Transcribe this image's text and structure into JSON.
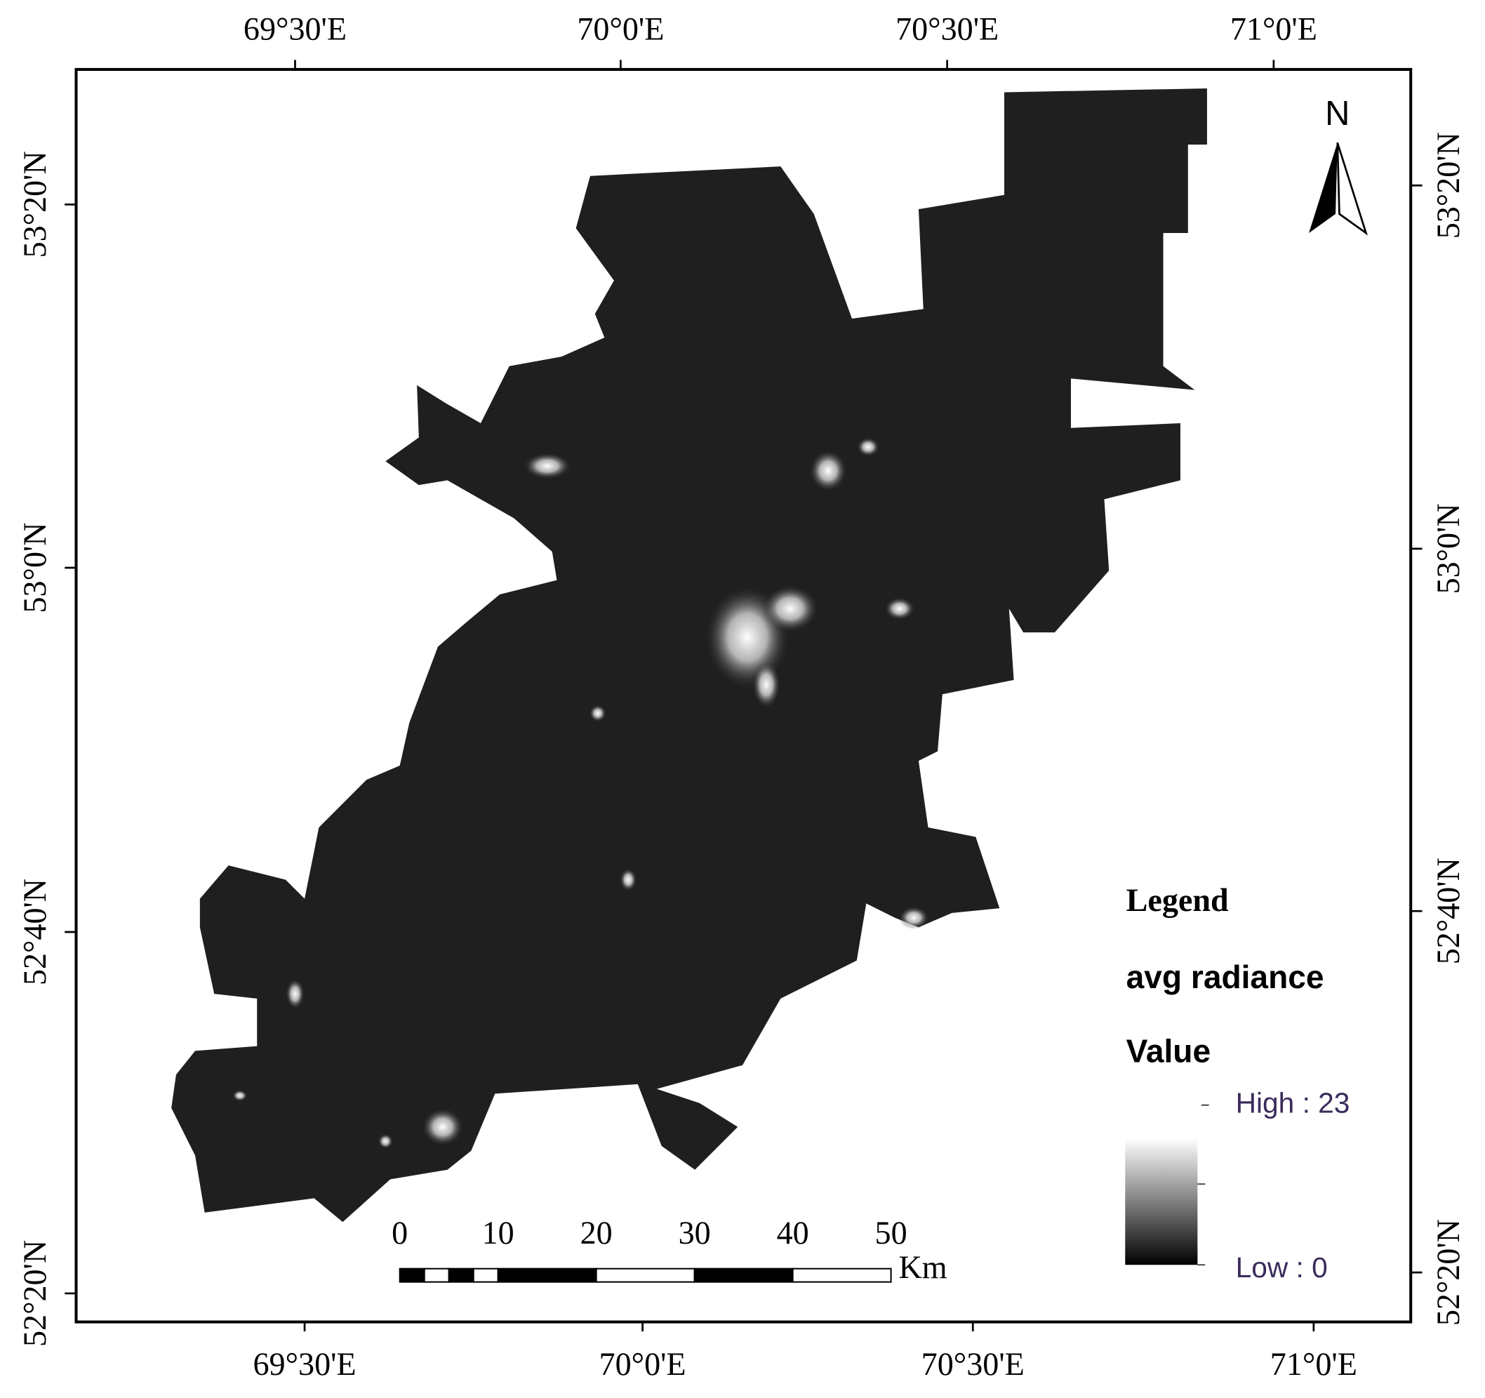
{
  "top_labels": [
    "69°30'E",
    "70°0'E",
    "70°30'E",
    "71°0'E"
  ],
  "bottom_labels": [
    "69°30'E",
    "70°0'E",
    "70°30'E",
    "71°0'E"
  ],
  "left_labels": [
    "53°20'N",
    "53°0'N",
    "52°40'N",
    "52°20'N"
  ],
  "right_labels": [
    "53°20'N",
    "53°0'N",
    "52°40'N",
    "52°20'N"
  ],
  "north": "N",
  "legend": {
    "title": "Legend",
    "layer": "avg radiance",
    "field": "Value",
    "high": "High : 23",
    "low": "Low : 0"
  },
  "scale_bar": {
    "ticks": [
      0,
      10,
      20,
      30,
      40,
      50
    ],
    "unit": "Km"
  }
}
